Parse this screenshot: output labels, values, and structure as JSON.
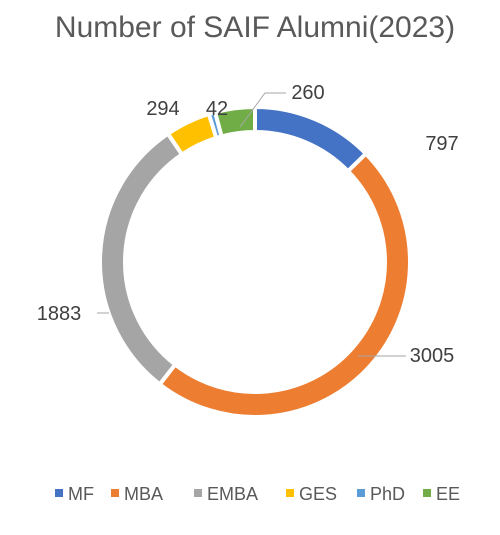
{
  "chart_data": {
    "type": "pie",
    "variant": "doughnut",
    "title": "Number of SAIF Alumni(2023)",
    "categories": [
      "MF",
      "MBA",
      "EMBA",
      "GES",
      "PhD",
      "EE"
    ],
    "values": [
      797,
      3005,
      1883,
      294,
      42,
      260
    ],
    "colors": [
      "#4472C4",
      "#ED7D31",
      "#A5A5A5",
      "#FFC000",
      "#5B9BD5",
      "#70AD47"
    ],
    "legend_position": "bottom",
    "data_labels": true,
    "label_color": "#404040",
    "leader_line_color": "#A6A6A6",
    "title_color": "#595959"
  }
}
